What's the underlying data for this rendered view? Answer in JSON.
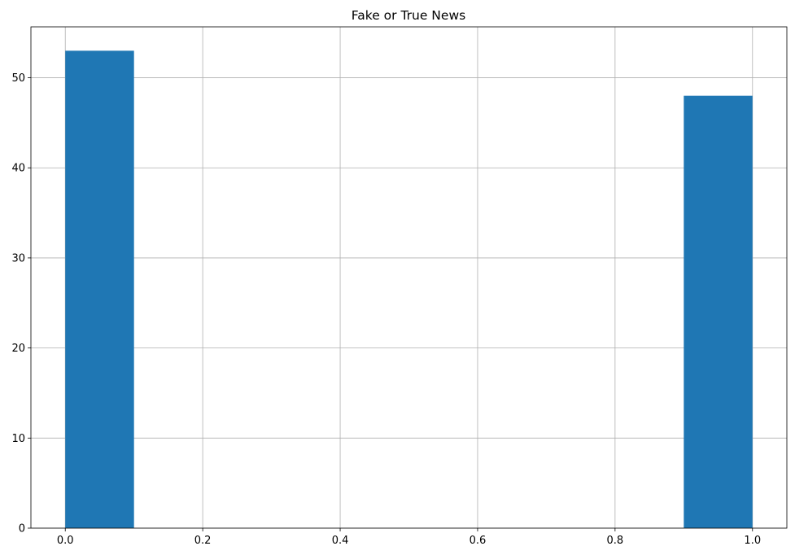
{
  "chart_data": {
    "type": "bar",
    "title": "Fake or True News",
    "xlabel": "",
    "ylabel": "",
    "bins": [
      {
        "x0": 0.0,
        "x1": 0.1,
        "count": 53
      },
      {
        "x0": 0.1,
        "x1": 0.2,
        "count": 0
      },
      {
        "x0": 0.2,
        "x1": 0.3,
        "count": 0
      },
      {
        "x0": 0.3,
        "x1": 0.4,
        "count": 0
      },
      {
        "x0": 0.4,
        "x1": 0.5,
        "count": 0
      },
      {
        "x0": 0.5,
        "x1": 0.6,
        "count": 0
      },
      {
        "x0": 0.6,
        "x1": 0.7,
        "count": 0
      },
      {
        "x0": 0.7,
        "x1": 0.8,
        "count": 0
      },
      {
        "x0": 0.8,
        "x1": 0.9,
        "count": 0
      },
      {
        "x0": 0.9,
        "x1": 1.0,
        "count": 48
      }
    ],
    "xlim": [
      -0.05,
      1.05
    ],
    "ylim": [
      0,
      55.65
    ],
    "xticks": [
      0.0,
      0.2,
      0.4,
      0.6,
      0.8,
      1.0
    ],
    "xtick_labels": [
      "0.0",
      "0.2",
      "0.4",
      "0.6",
      "0.8",
      "1.0"
    ],
    "yticks": [
      0,
      10,
      20,
      30,
      40,
      50
    ],
    "ytick_labels": [
      "0",
      "10",
      "20",
      "30",
      "40",
      "50"
    ],
    "grid": true,
    "bar_color": "#1f77b4",
    "grid_color": "#b0b0b0"
  }
}
